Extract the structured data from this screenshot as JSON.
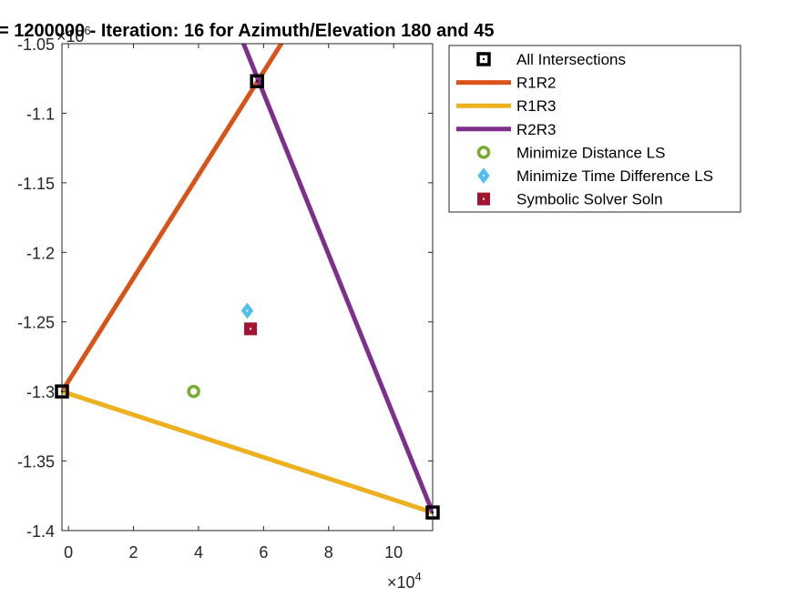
{
  "chart_data": {
    "type": "line",
    "title": "= 1200000 - Iteration: 16 for Azimuth/Elevation 180 and 45",
    "xlabel": "",
    "ylabel": "",
    "x_exponent_label": "×10",
    "x_exponent": "4",
    "y_exponent_label": "×10",
    "y_exponent": "6",
    "xlim": [
      -0.2,
      11.2
    ],
    "ylim": [
      -1.4,
      -1.05
    ],
    "x_ticks": [
      0,
      2,
      4,
      6,
      8,
      10
    ],
    "x_tick_labels": [
      "0",
      "2",
      "4",
      "6",
      "8",
      "10"
    ],
    "y_ticks": [
      -1.05,
      -1.1,
      -1.15,
      -1.2,
      -1.25,
      -1.3,
      -1.35,
      -1.4
    ],
    "y_tick_labels": [
      "-1.05",
      "-1.1",
      "-1.15",
      "-1.2",
      "-1.25",
      "-1.3",
      "-1.35",
      "-1.4"
    ],
    "grid": false,
    "legend_position": "outside-right",
    "series": [
      {
        "name": "All Intersections",
        "kind": "markers",
        "marker": "square",
        "color": "#000000",
        "points": [
          [
            5.8,
            -1.077
          ],
          [
            -0.2,
            -1.3
          ],
          [
            11.2,
            -1.387
          ]
        ]
      },
      {
        "name": "R1R2",
        "kind": "line",
        "color": "#D95319",
        "points": [
          [
            -0.2,
            -1.3
          ],
          [
            6.6,
            -1.048
          ]
        ]
      },
      {
        "name": "R1R3",
        "kind": "line",
        "color": "#EDB120",
        "points": [
          [
            -0.2,
            -1.3
          ],
          [
            11.2,
            -1.387
          ]
        ]
      },
      {
        "name": "R2R3",
        "kind": "line",
        "color": "#7E2F8E",
        "points": [
          [
            5.3,
            -1.045
          ],
          [
            11.2,
            -1.387
          ]
        ]
      },
      {
        "name": "Minimize Distance LS",
        "kind": "markers",
        "marker": "circle",
        "color": "#77AC30",
        "points": [
          [
            3.85,
            -1.3
          ]
        ]
      },
      {
        "name": "Minimize Time Difference LS",
        "kind": "markers",
        "marker": "diamond",
        "color": "#4DBEEE",
        "points": [
          [
            5.5,
            -1.242
          ]
        ]
      },
      {
        "name": "Symbolic Solver Soln",
        "kind": "markers",
        "marker": "square-filled",
        "color": "#A2142F",
        "points": [
          [
            5.6,
            -1.255
          ]
        ]
      }
    ]
  }
}
